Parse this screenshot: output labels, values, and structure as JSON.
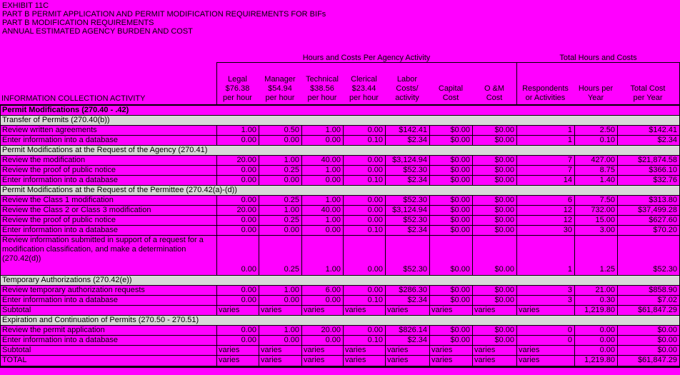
{
  "colors": {
    "background": "#FF00FF",
    "section_row": "#D9D9D9",
    "grid": "#000000",
    "text": "#000000"
  },
  "title_lines": [
    "EXHIBIT 11C",
    "PART B PERMIT APPLICATION AND PERMIT MODIFICATION REQUIREMENTS FOR BIFs",
    "PART B MODIFICATION REQUIREMENTS",
    "ANNUAL ESTIMATED AGENCY BURDEN AND COST"
  ],
  "header": {
    "group1": "Hours and Costs Per Agency Activity",
    "group2": "Total Hours and Costs",
    "info_column": "INFORMATION COLLECTION ACTIVITY",
    "columns": [
      {
        "name": "legal",
        "lines": [
          "Legal",
          "$76.38",
          "per hour"
        ]
      },
      {
        "name": "manager",
        "lines": [
          "Manager",
          "$54.94",
          "per hour"
        ]
      },
      {
        "name": "technical",
        "lines": [
          "Technical",
          "$38.56",
          "per hour"
        ]
      },
      {
        "name": "clerical",
        "lines": [
          "Clerical",
          "$23.44",
          "per hour"
        ]
      },
      {
        "name": "labor-costs",
        "lines": [
          "Labor",
          "Costs/",
          "activity"
        ]
      },
      {
        "name": "capital-cost",
        "lines": [
          "Capital",
          "Cost"
        ]
      },
      {
        "name": "om-cost",
        "lines": [
          "O &M",
          "Cost"
        ]
      },
      {
        "name": "respondents",
        "lines": [
          "Respondents",
          "or Activities"
        ]
      },
      {
        "name": "hours-per-year",
        "lines": [
          "Hours per",
          "Year"
        ]
      },
      {
        "name": "total-cost-per-year",
        "lines": [
          "Total Cost",
          "per Year"
        ]
      }
    ]
  },
  "table": {
    "rows": [
      {
        "type": "section-bold",
        "label": "Permit Modifications (270.40 - .42)"
      },
      {
        "type": "section",
        "label": "Transfer of Permits (270.40(b))"
      },
      {
        "type": "data",
        "label": "Review written agreements",
        "values": [
          "1.00",
          "0.50",
          "1.00",
          "0.00",
          "$142.41",
          "$0.00",
          "$0.00",
          "1",
          "2.50",
          "$142.41"
        ]
      },
      {
        "type": "data",
        "label": "Enter information into a database",
        "values": [
          "0.00",
          "0.00",
          "0.00",
          "0.10",
          "$2.34",
          "$0.00",
          "$0.00",
          "1",
          "0.10",
          "$2.34"
        ]
      },
      {
        "type": "section",
        "label": "Permit Modifications at the Request of the Agency (270.41)"
      },
      {
        "type": "data",
        "label": "Review the modification",
        "values": [
          "20.00",
          "1.00",
          "40.00",
          "0.00",
          "$3,124.94",
          "$0.00",
          "$0.00",
          "7",
          "427.00",
          "$21,874.58"
        ]
      },
      {
        "type": "data",
        "label": "Review the proof of public notice",
        "values": [
          "0.00",
          "0.25",
          "1.00",
          "0.00",
          "$52.30",
          "$0.00",
          "$0.00",
          "7",
          "8.75",
          "$366.10"
        ]
      },
      {
        "type": "data",
        "label": "Enter information into a database",
        "values": [
          "0.00",
          "0.00",
          "0.00",
          "0.10",
          "$2.34",
          "$0.00",
          "$0.00",
          "14",
          "1.40",
          "$32.76"
        ]
      },
      {
        "type": "section",
        "label": "Permit Modifications at the Request of the Permittee  (270.42(a)-(d))"
      },
      {
        "type": "data",
        "label": "Review the Class 1 modification",
        "values": [
          "0.00",
          "0.25",
          "1.00",
          "0.00",
          "$52.30",
          "$0.00",
          "$0.00",
          "6",
          "7.50",
          "$313.80"
        ]
      },
      {
        "type": "data",
        "label": "Review the Class 2 or Class 3 modification",
        "values": [
          "20.00",
          "1.00",
          "40.00",
          "0.00",
          "$3,124.94",
          "$0.00",
          "$0.00",
          "12",
          "732.00",
          "$37,499.28"
        ]
      },
      {
        "type": "data",
        "label": "Review the proof of public notice",
        "values": [
          "0.00",
          "0.25",
          "1.00",
          "0.00",
          "$52.30",
          "$0.00",
          "$0.00",
          "12",
          "15.00",
          "$627.60"
        ]
      },
      {
        "type": "data",
        "label": "Enter information into a database",
        "values": [
          "0.00",
          "0.00",
          "0.00",
          "0.10",
          "$2.34",
          "$0.00",
          "$0.00",
          "30",
          "3.00",
          "$70.20"
        ]
      },
      {
        "type": "data",
        "multiline": true,
        "label": "Review information submitted in support of a request for a modification classification, and make a determination (270.42(d))",
        "values": [
          "0.00",
          "0.25",
          "1.00",
          "0.00",
          "$52.30",
          "$0.00",
          "$0.00",
          "1",
          "1.25",
          "$52.30"
        ]
      },
      {
        "type": "section",
        "label": "Temporary Authorizations (270.42(e))"
      },
      {
        "type": "data",
        "label": "Review temporary authorization requests",
        "values": [
          "0.00",
          "1.00",
          "6.00",
          "0.00",
          "$286.30",
          "$0.00",
          "$0.00",
          "3",
          "21.00",
          "$858.90"
        ]
      },
      {
        "type": "data",
        "label": "Enter information into a database",
        "values": [
          "0.00",
          "0.00",
          "0.00",
          "0.10",
          "$2.34",
          "$0.00",
          "$0.00",
          "3",
          "0.30",
          "$7.02"
        ]
      },
      {
        "type": "subtotal",
        "label": "Subtotal",
        "values": [
          "varies",
          "varies",
          "varies",
          "varies",
          "varies",
          "varies",
          "varies",
          "varies",
          "1,219.80",
          "$61,847.29"
        ]
      },
      {
        "type": "section",
        "label": "Expiration and Continuation of Permits (270.50 - 270.51)"
      },
      {
        "type": "data",
        "label": "Review the permit application",
        "values": [
          "0.00",
          "1.00",
          "20.00",
          "0.00",
          "$826.14",
          "$0.00",
          "$0.00",
          "0",
          "0.00",
          "$0.00"
        ]
      },
      {
        "type": "data",
        "label": "Enter information into a database",
        "values": [
          "0.00",
          "0.00",
          "0.00",
          "0.10",
          "$2.34",
          "$0.00",
          "$0.00",
          "0",
          "0.00",
          "$0.00"
        ]
      },
      {
        "type": "subtotal",
        "label": "Subtotal",
        "values": [
          "varies",
          "varies",
          "varies",
          "varies",
          "varies",
          "varies",
          "varies",
          "varies",
          "0.00",
          "$0.00"
        ]
      },
      {
        "type": "total",
        "label": "TOTAL",
        "values": [
          "varies",
          "varies",
          "varies",
          "varies",
          "varies",
          "varies",
          "varies",
          "varies",
          "1,219.80",
          "$61,847.29"
        ]
      }
    ]
  }
}
